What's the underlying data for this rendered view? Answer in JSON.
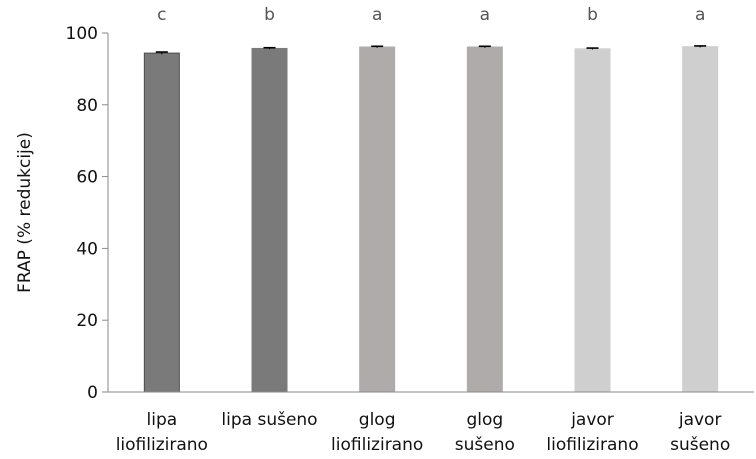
{
  "chart_data": {
    "type": "bar",
    "categories": [
      [
        "lipa",
        "liofilizirano"
      ],
      [
        "lipa sušeno"
      ],
      [
        "glog",
        "liofilizirano"
      ],
      [
        "glog",
        "sušeno"
      ],
      [
        "javor",
        "liofilizirano"
      ],
      [
        "javor",
        "sušeno"
      ]
    ],
    "values": [
      94.4,
      95.7,
      96.1,
      96.1,
      95.6,
      96.2
    ],
    "errors": [
      0.3,
      0.2,
      0.2,
      0.2,
      0.2,
      0.2
    ],
    "significance_letters": [
      "c",
      "b",
      "a",
      "a",
      "b",
      "a"
    ],
    "colors": [
      "#7a7a7a",
      "#7a7a7a",
      "#aeabaa",
      "#aeabaa",
      "#d0cfcf",
      "#d0cfcf"
    ],
    "bar_edge_colors": [
      "#4d4d4d",
      "#7a7a7a",
      "#aeabaa",
      "#aeabaa",
      "#d0cfcf",
      "#d0cfcf"
    ],
    "ylabel": "FRAP (% redukcije)",
    "xlabel": "",
    "ylim": [
      0,
      100
    ],
    "yticks": [
      0,
      20,
      40,
      60,
      80,
      100
    ],
    "grid": false,
    "legend": "none"
  }
}
